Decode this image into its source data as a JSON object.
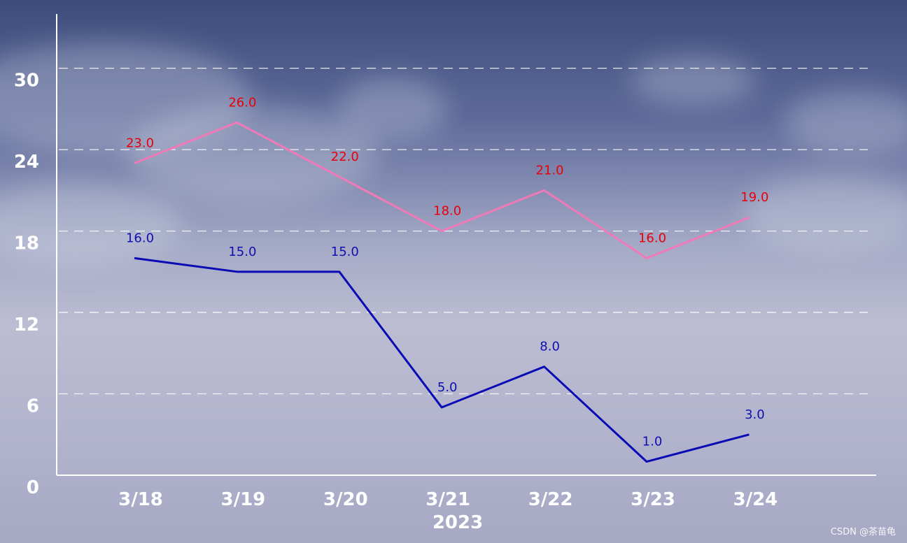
{
  "chart_data": {
    "type": "line",
    "categories": [
      "3/18",
      "3/19",
      "3/20",
      "3/21",
      "3/22",
      "3/23",
      "3/24"
    ],
    "series": [
      {
        "values": [
          23,
          26,
          22,
          18,
          21,
          16,
          19
        ],
        "line_color": "#f07ab8",
        "label_color": "#e8000b"
      },
      {
        "values": [
          16,
          15,
          15,
          5,
          8,
          1,
          3
        ],
        "line_color": "#0a0ab4",
        "label_color": "#1010b0"
      }
    ],
    "data_labels": true,
    "data_label_format": "0.0",
    "xlabel": "2023",
    "ylabel": "",
    "title": "",
    "ylim": [
      0,
      34
    ],
    "yticks": [
      0,
      6,
      12,
      18,
      24,
      30
    ],
    "grid": "horizontal dashed",
    "legend": "none",
    "axis_color": "#ffffff"
  },
  "watermark": "CSDN @茶苗龟"
}
